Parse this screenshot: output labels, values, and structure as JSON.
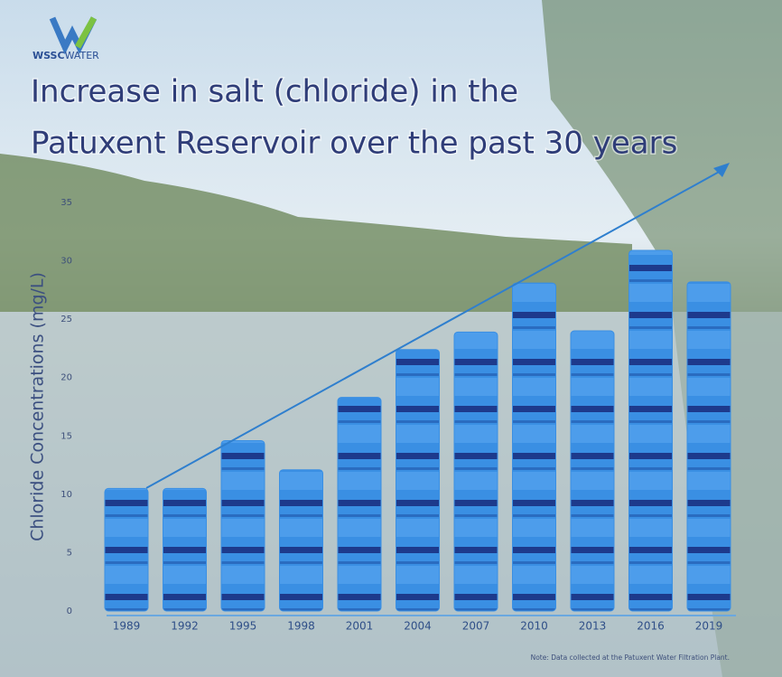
{
  "logo": {
    "brand": "WSSC",
    "name": "WATER"
  },
  "chart_data": {
    "type": "bar",
    "title": [
      "Increase in salt (chloride) in the",
      "Patuxent Reservoir over the past 30 years"
    ],
    "ylabel": "Chloride Concentrations (mg/L)",
    "note": "Note: Data collected at the Patuxent Water Filtration Plant.",
    "categories": [
      "1989",
      "1992",
      "1995",
      "1998",
      "2001",
      "2004",
      "2007",
      "2010",
      "2013",
      "2016",
      "2019"
    ],
    "values": [
      10.5,
      10.5,
      14.6,
      12.1,
      18.3,
      22.4,
      23.9,
      28.1,
      24.0,
      30.9,
      28.2
    ],
    "color": "#3a8fe3",
    "ylim": [
      0,
      35
    ],
    "yticks": [
      0,
      5,
      10,
      15,
      20,
      25,
      30,
      35
    ],
    "grid": false
  }
}
